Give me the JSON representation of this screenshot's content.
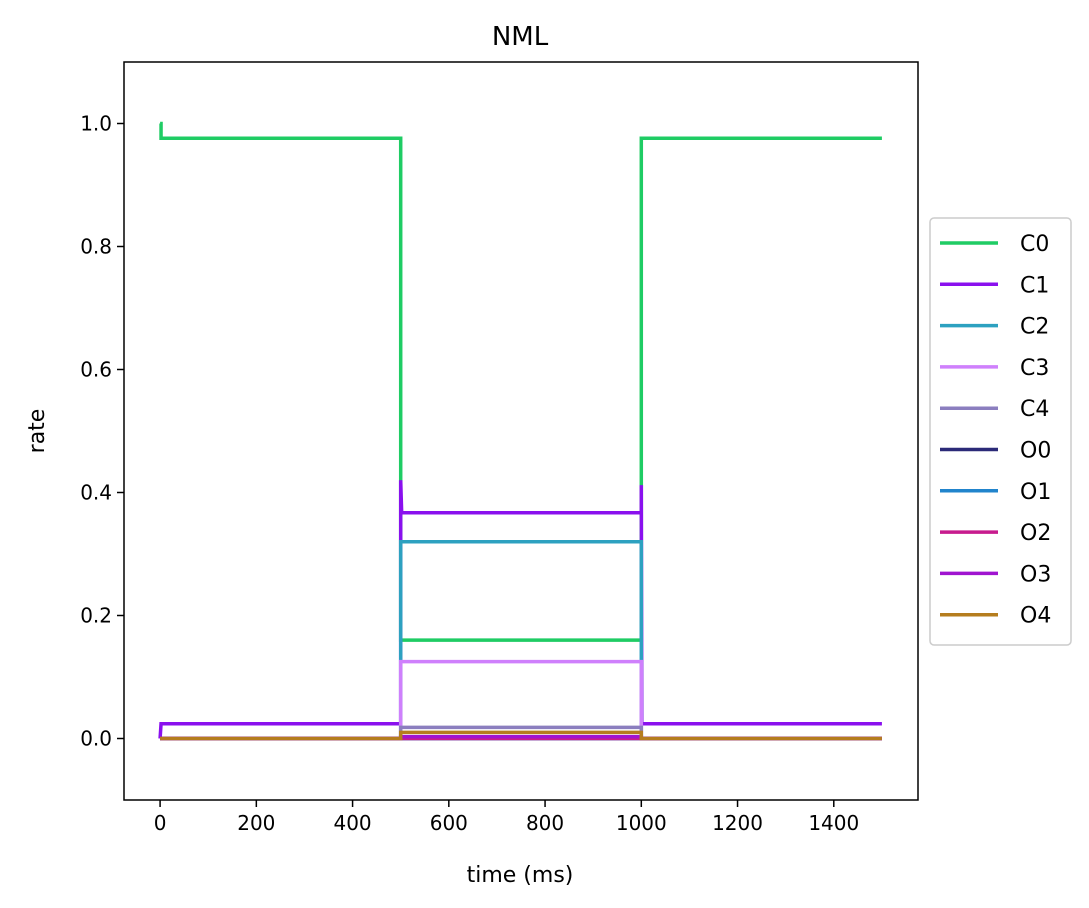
{
  "chart_data": {
    "type": "line",
    "title": "NML",
    "xlabel": "time (ms)",
    "ylabel": "rate",
    "xlim": [
      -75,
      1575
    ],
    "ylim": [
      -0.1,
      1.1
    ],
    "xticks": [
      0,
      200,
      400,
      600,
      800,
      1000,
      1200,
      1400
    ],
    "xtick_labels": [
      "0",
      "200",
      "400",
      "600",
      "800",
      "1000",
      "1200",
      "1400"
    ],
    "yticks": [
      0.0,
      0.2,
      0.4,
      0.6,
      0.8,
      1.0
    ],
    "ytick_labels": [
      "0.0",
      "0.2",
      "0.4",
      "0.6",
      "0.8",
      "1.0"
    ],
    "grid": false,
    "legend_position": "right, outside plot",
    "series": [
      {
        "name": "C0",
        "color": "#1fcc64",
        "x": [
          0,
          2,
          2,
          500,
          500,
          1000,
          1000,
          1500
        ],
        "y": [
          1.0,
          1.0,
          0.976,
          0.976,
          0.16,
          0.16,
          0.976,
          0.976
        ]
      },
      {
        "name": "C1",
        "color": "#8a10ee",
        "x": [
          0,
          2,
          500,
          500,
          502,
          1000,
          1000,
          1001,
          1500
        ],
        "y": [
          0.0,
          0.024,
          0.024,
          0.42,
          0.367,
          0.367,
          0.412,
          0.024,
          0.024
        ]
      },
      {
        "name": "C2",
        "color": "#2da1c0",
        "x": [
          0,
          500,
          500,
          1000,
          1000,
          1500
        ],
        "y": [
          0.0,
          0.0,
          0.32,
          0.32,
          0.0,
          0.0
        ]
      },
      {
        "name": "C3",
        "color": "#cf80fc",
        "x": [
          0,
          500,
          500,
          1000,
          1000,
          1500
        ],
        "y": [
          0.0,
          0.0,
          0.125,
          0.125,
          0.0,
          0.0
        ]
      },
      {
        "name": "C4",
        "color": "#8b7ebf",
        "x": [
          0,
          500,
          500,
          1000,
          1000,
          1500
        ],
        "y": [
          0.0,
          0.0,
          0.018,
          0.018,
          0.0,
          0.0
        ]
      },
      {
        "name": "O0",
        "color": "#2b2a78",
        "x": [
          0,
          1500
        ],
        "y": [
          0.0,
          0.0
        ]
      },
      {
        "name": "O1",
        "color": "#2184cc",
        "x": [
          0,
          1500
        ],
        "y": [
          0.0,
          0.0
        ]
      },
      {
        "name": "O2",
        "color": "#c71b8e",
        "x": [
          0,
          1500
        ],
        "y": [
          0.0,
          0.0
        ]
      },
      {
        "name": "O3",
        "color": "#a014d0",
        "x": [
          0,
          500,
          500,
          1000,
          1000,
          1500
        ],
        "y": [
          0.0,
          0.0,
          0.003,
          0.003,
          0.0,
          0.0
        ]
      },
      {
        "name": "O4",
        "color": "#b57d1e",
        "x": [
          0,
          500,
          500,
          1000,
          1000,
          1500
        ],
        "y": [
          0.0,
          0.0,
          0.01,
          0.01,
          0.0,
          0.0
        ]
      }
    ]
  }
}
